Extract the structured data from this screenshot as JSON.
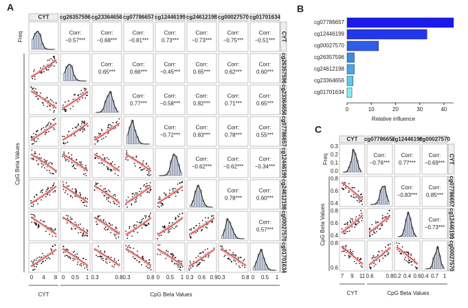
{
  "panel_a": {
    "letter": "A",
    "column_labels": [
      "CYT",
      "cg26357596",
      "cg23364656",
      "cg07786657",
      "cg12446199",
      "cg24612198",
      "cg00027570",
      "cg01701634"
    ],
    "freq_label": "Freq",
    "y_label": "CpG Beta Values",
    "x_label_left": "CYT",
    "x_label": "CpG Beta Values",
    "corr_label": "Corr:",
    "correlations": [
      [
        "−0.57***",
        "−0.68***",
        "−0.81***",
        "0.73***",
        "−0.73***",
        "−0.75***",
        "−0.51***"
      ],
      [
        "0.65***",
        "0.66***",
        "−0.45***",
        "0.65***",
        "0.62***",
        "0.60***"
      ],
      [
        "0.77***",
        "−0.58***",
        "0.82***",
        "0.71***",
        "0.65***"
      ],
      [
        "−0.72***",
        "0.83***",
        "0.78***",
        "0.55***"
      ],
      [
        "−0.62***",
        "−0.62***",
        "−0.34***"
      ],
      [
        "0.78***",
        "0.60***"
      ],
      [
        "0.57***"
      ]
    ],
    "x_ticks": [
      [
        "0",
        "4",
        "8"
      ],
      [
        "0",
        "0.5",
        "1"
      ],
      [
        "0.3",
        "0.8"
      ],
      [
        "0.3",
        "0.8"
      ],
      [
        "0",
        "0.5",
        "1"
      ],
      [
        "0.3",
        "0.6",
        "0.9"
      ],
      [
        "0.3",
        "0.8"
      ],
      [
        "0",
        "0.5",
        "1"
      ]
    ]
  },
  "chart_data": {
    "type": "bar",
    "letter": "B",
    "orientation": "horizontal",
    "categories": [
      "cg07786657",
      "cg12446199",
      "cg00027570",
      "cg26357596",
      "cg24612198",
      "cg23364656",
      "cg01701634"
    ],
    "values": [
      44,
      33,
      13,
      3,
      3,
      2.5,
      2
    ],
    "colors": [
      "#1a1aee",
      "#2236ee",
      "#2f5ce8",
      "#3a8be8",
      "#45a8ea",
      "#5cc8ee",
      "#7ef0f0"
    ],
    "xlim": [
      0,
      44
    ],
    "xticks": [
      0,
      10,
      20,
      30,
      40
    ],
    "x_label": "Relative influence"
  },
  "panel_c": {
    "letter": "C",
    "column_labels": [
      "CYT",
      "cg07786657",
      "cg12446199",
      "cg00027570"
    ],
    "freq_label": "Freq",
    "y_label": "CpG Beta Values",
    "x_label_left": "CYT",
    "x_label": "CpG Beta Values",
    "corr_label": "Corr:",
    "correlations": [
      [
        "−0.76***",
        "0.77***",
        "−0.69***"
      ],
      [
        "−0.83***",
        "0.85***"
      ],
      [
        "−0.73***"
      ]
    ],
    "x_ticks": [
      [
        "7",
        "9",
        "11"
      ],
      [
        "0.6",
        "0.8"
      ],
      [
        "0.2",
        "0.4",
        "0.6"
      ],
      [
        "0.4",
        "0.7",
        "1"
      ]
    ],
    "y_ticks": [
      [
        "0.3",
        "0.2",
        "0.1",
        "0.0"
      ],
      [
        "0.8",
        "0.6",
        "0.4"
      ],
      [
        "0.8",
        "0.6",
        "0.4"
      ],
      [
        "0.8",
        "0.6"
      ]
    ]
  }
}
